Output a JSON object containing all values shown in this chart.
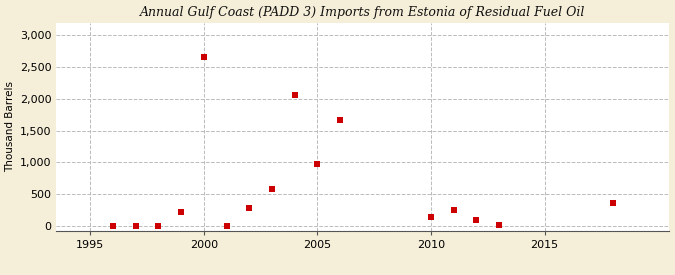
{
  "title": "Annual Gulf Coast (PADD 3) Imports from Estonia of Residual Fuel Oil",
  "ylabel": "Thousand Barrels",
  "background_color": "#f5eed8",
  "plot_background_color": "#ffffff",
  "marker_color": "#cc0000",
  "marker_size": 18,
  "xlim": [
    1993.5,
    2020.5
  ],
  "ylim": [
    -80,
    3200
  ],
  "yticks": [
    0,
    500,
    1000,
    1500,
    2000,
    2500,
    3000
  ],
  "xticks": [
    1995,
    2000,
    2005,
    2010,
    2015
  ],
  "vgrid_positions": [
    1995,
    2000,
    2005,
    2010,
    2015
  ],
  "data": {
    "1996": 5,
    "1997": 8,
    "1998": 8,
    "1999": 215,
    "2000": 2650,
    "2001": 5,
    "2002": 290,
    "2003": 575,
    "2004": 2060,
    "2005": 970,
    "2006": 1660,
    "2010": 145,
    "2011": 250,
    "2012": 95,
    "2013": 20,
    "2018": 360
  }
}
